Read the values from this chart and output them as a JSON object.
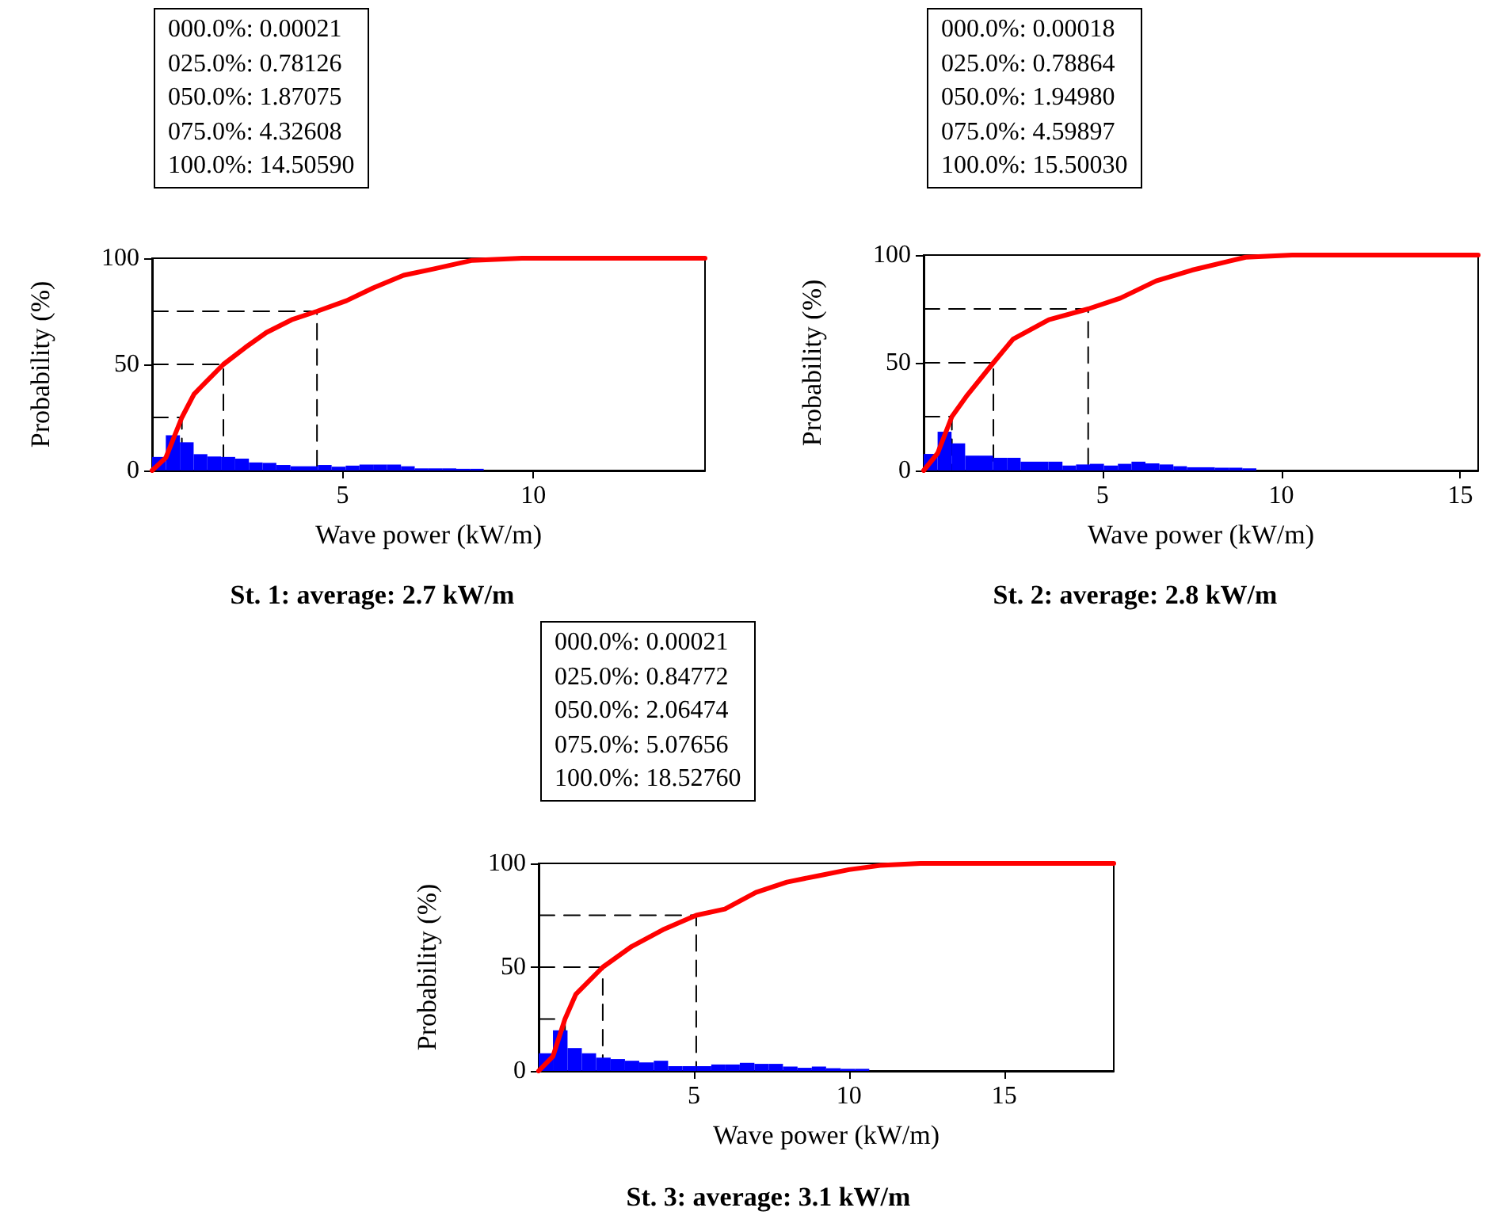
{
  "chart_data": [
    {
      "type": "line",
      "title": "St. 1: average: 2.7 kW/m",
      "xlabel": "Wave power (kW/m)",
      "ylabel": "Probability (%)",
      "annotations": [
        "000.0%: 0.00021",
        "025.0%: 0.78126",
        "050.0%: 1.87075",
        "075.0%: 4.32608",
        "100.0%: 14.50590"
      ],
      "xlim": [
        0,
        14.5059
      ],
      "xticks": [
        5,
        10
      ],
      "ylim": [
        0,
        100
      ],
      "yticks": [
        0,
        50,
        100
      ],
      "marker": "none",
      "grid": false,
      "series": [
        {
          "type": "histogram",
          "color": "#0000ff",
          "bins": [
            0,
            0.36,
            0.73,
            1.09,
            1.45,
            1.81,
            2.18,
            2.54,
            2.9,
            3.26,
            3.63,
            3.99,
            4.35,
            4.71,
            5.08,
            5.44,
            5.8,
            6.16,
            6.53,
            6.89,
            7.25,
            7.61,
            7.98,
            8.34,
            8.7
          ],
          "values": [
            6.4,
            16.6,
            13.3,
            7.7,
            6.6,
            6.4,
            5.6,
            3.8,
            3.6,
            2.6,
            2,
            2,
            2.6,
            1.8,
            2.3,
            2.8,
            2.8,
            2.8,
            2,
            1,
            1,
            1,
            0.8,
            0.8
          ]
        },
        {
          "type": "line",
          "color": "#ff0000",
          "line_style": "solid",
          "x": [
            0,
            0.36,
            0.78126,
            1.1,
            1.87075,
            2.45,
            3,
            3.66,
            4.32608,
            5.1,
            5.8,
            6.6,
            7.4,
            8.4,
            9.7,
            14.5059
          ],
          "values": [
            0,
            6,
            25,
            36,
            50,
            58,
            65,
            71,
            75,
            80,
            86,
            92,
            95,
            99,
            100,
            100
          ]
        },
        {
          "type": "line",
          "color": "#000000",
          "line_style": "dashed",
          "x": [
            0,
            0.78126,
            0.78126
          ],
          "values": [
            25,
            25,
            0
          ]
        },
        {
          "type": "line",
          "color": "#000000",
          "line_style": "dashed",
          "x": [
            0,
            1.87075,
            1.87075
          ],
          "values": [
            50,
            50,
            0
          ]
        },
        {
          "type": "line",
          "color": "#000000",
          "line_style": "dashed",
          "x": [
            0,
            4.32608,
            4.32608
          ],
          "values": [
            75,
            75,
            0
          ]
        }
      ]
    },
    {
      "type": "line",
      "title": "St. 2: average: 2.8 kW/m",
      "xlabel": "Wave power (kW/m)",
      "ylabel": "Probability (%)",
      "annotations": [
        "000.0%: 0.00018",
        "025.0%: 0.78864",
        "050.0%: 1.94980",
        "075.0%: 4.59897",
        "100.0%: 15.50030"
      ],
      "xlim": [
        0,
        15.5003
      ],
      "xticks": [
        5,
        10,
        15
      ],
      "ylim": [
        0,
        100
      ],
      "yticks": [
        0,
        50,
        100
      ],
      "marker": "none",
      "grid": false,
      "series": [
        {
          "type": "histogram",
          "color": "#0000ff",
          "bins": [
            0,
            0.39,
            0.78,
            1.16,
            1.55,
            1.94,
            2.33,
            2.71,
            3.1,
            3.49,
            3.88,
            4.26,
            4.65,
            5.04,
            5.43,
            5.81,
            6.2,
            6.59,
            6.98,
            7.36,
            7.75,
            8.14,
            8.53,
            8.91,
            9.3
          ],
          "values": [
            7.7,
            18,
            12.6,
            6.9,
            6.9,
            5.9,
            5.9,
            4.1,
            4.1,
            4.1,
            2.3,
            2.8,
            3.1,
            2.3,
            3.1,
            4.1,
            3.3,
            2.8,
            2,
            1.5,
            1.5,
            1.3,
            1.3,
            1
          ]
        },
        {
          "type": "line",
          "color": "#ff0000",
          "line_style": "solid",
          "x": [
            0,
            0.39,
            0.78864,
            1.22,
            1.9498,
            2.5,
            3.5,
            4.59897,
            5.5,
            6.5,
            7.5,
            8.5,
            9,
            10.3,
            15.5003
          ],
          "values": [
            0,
            8,
            25,
            35,
            50,
            61,
            70,
            75,
            80,
            88,
            93,
            97,
            99,
            100,
            100
          ]
        },
        {
          "type": "line",
          "color": "#000000",
          "line_style": "dashed",
          "x": [
            0,
            0.78864,
            0.78864
          ],
          "values": [
            25,
            25,
            0
          ]
        },
        {
          "type": "line",
          "color": "#000000",
          "line_style": "dashed",
          "x": [
            0,
            1.9498,
            1.9498
          ],
          "values": [
            50,
            50,
            0
          ]
        },
        {
          "type": "line",
          "color": "#000000",
          "line_style": "dashed",
          "x": [
            0,
            4.59897,
            4.59897
          ],
          "values": [
            75,
            75,
            0
          ]
        }
      ]
    },
    {
      "type": "line",
      "title": "St. 3: average: 3.1 kW/m",
      "xlabel": "Wave power (kW/m)",
      "ylabel": "Probability (%)",
      "annotations": [
        "000.0%: 0.00021",
        "025.0%: 0.84772",
        "050.0%: 2.06474",
        "075.0%: 5.07656",
        "100.0%: 18.52760"
      ],
      "xlim": [
        0,
        18.5276
      ],
      "xticks": [
        5,
        10,
        15
      ],
      "ylim": [
        0,
        100
      ],
      "yticks": [
        0,
        50,
        100
      ],
      "marker": "none",
      "grid": false,
      "series": [
        {
          "type": "histogram",
          "color": "#0000ff",
          "bins": [
            0,
            0.46,
            0.93,
            1.39,
            1.85,
            2.32,
            2.78,
            3.24,
            3.71,
            4.17,
            4.63,
            5.09,
            5.56,
            6.02,
            6.48,
            6.95,
            7.41,
            7.87,
            8.34,
            8.8,
            9.26,
            9.73,
            10.19,
            10.65
          ],
          "values": [
            8.5,
            19.6,
            11,
            8.5,
            6.4,
            5.7,
            4.9,
            4.1,
            4.9,
            2.3,
            2.3,
            2.3,
            3.1,
            3.1,
            3.9,
            3.4,
            3.4,
            2.1,
            1.5,
            2.1,
            1.3,
            1,
            1
          ]
        },
        {
          "type": "line",
          "color": "#ff0000",
          "line_style": "solid",
          "x": [
            0,
            0.46,
            0.84772,
            1.2,
            2.06474,
            3,
            4,
            5.07656,
            6,
            7,
            8,
            9,
            10,
            11,
            12.3,
            18.5276
          ],
          "values": [
            0,
            7,
            25,
            37,
            50,
            60,
            68,
            75,
            78,
            86,
            91,
            94,
            97,
            99,
            100,
            100
          ]
        },
        {
          "type": "line",
          "color": "#000000",
          "line_style": "dashed",
          "x": [
            0,
            0.84772,
            0.84772
          ],
          "values": [
            25,
            25,
            0
          ]
        },
        {
          "type": "line",
          "color": "#000000",
          "line_style": "dashed",
          "x": [
            0,
            2.06474,
            2.06474
          ],
          "values": [
            50,
            50,
            0
          ]
        },
        {
          "type": "line",
          "color": "#000000",
          "line_style": "dashed",
          "x": [
            0,
            5.07656,
            5.07656
          ],
          "values": [
            75,
            75,
            0
          ]
        }
      ]
    }
  ]
}
